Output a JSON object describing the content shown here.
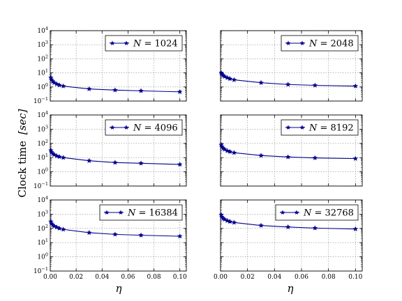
{
  "figure": {
    "ylabel_main": "Clock time",
    "ylabel_unit": "[sec]",
    "xlabel": "η"
  },
  "chart_data": [
    {
      "type": "line",
      "series": [
        {
          "name": "N = 1024",
          "x": [
            0.0005,
            0.001,
            0.002,
            0.003,
            0.005,
            0.007,
            0.01,
            0.03,
            0.05,
            0.07,
            0.1
          ],
          "y": [
            4.5,
            3.3,
            2.5,
            2.0,
            1.6,
            1.35,
            1.15,
            0.72,
            0.6,
            0.53,
            0.45
          ]
        }
      ],
      "x_ticks": [
        "0.00",
        "0.02",
        "0.04",
        "0.06",
        "0.08",
        "0.10"
      ],
      "y_ticks": [
        "10^-1",
        "10^0",
        "10^1",
        "10^2",
        "10^3",
        "10^4"
      ],
      "xlim": [
        0,
        0.105
      ],
      "ylim": [
        0.1,
        10000
      ],
      "yscale": "log",
      "grid": true,
      "legend": "top-right"
    },
    {
      "type": "line",
      "series": [
        {
          "name": "N = 2048",
          "x": [
            0.0005,
            0.001,
            0.002,
            0.003,
            0.005,
            0.007,
            0.01,
            0.03,
            0.05,
            0.07,
            0.1
          ],
          "y": [
            10,
            8,
            6.5,
            5.5,
            4.5,
            3.8,
            3.2,
            2.0,
            1.5,
            1.3,
            1.15
          ]
        }
      ],
      "x_ticks": [
        "0.00",
        "0.02",
        "0.04",
        "0.06",
        "0.08",
        "0.10"
      ],
      "y_ticks": [
        "10^-1",
        "10^0",
        "10^1",
        "10^2",
        "10^3",
        "10^4"
      ],
      "xlim": [
        0,
        0.105
      ],
      "ylim": [
        0.1,
        10000
      ],
      "yscale": "log",
      "grid": true,
      "legend": "top-right"
    },
    {
      "type": "line",
      "series": [
        {
          "name": "N = 4096",
          "x": [
            0.0005,
            0.001,
            0.002,
            0.003,
            0.005,
            0.007,
            0.01,
            0.03,
            0.05,
            0.07,
            0.1
          ],
          "y": [
            32,
            24,
            19,
            16,
            13,
            11.5,
            10,
            6.0,
            4.5,
            4.0,
            3.3
          ]
        }
      ],
      "x_ticks": [
        "0.00",
        "0.02",
        "0.04",
        "0.06",
        "0.08",
        "0.10"
      ],
      "y_ticks": [
        "10^-1",
        "10^0",
        "10^1",
        "10^2",
        "10^3",
        "10^4"
      ],
      "xlim": [
        0,
        0.105
      ],
      "ylim": [
        0.1,
        10000
      ],
      "yscale": "log",
      "grid": true,
      "legend": "top-right"
    },
    {
      "type": "line",
      "series": [
        {
          "name": "N = 8192",
          "x": [
            0.0005,
            0.001,
            0.002,
            0.003,
            0.005,
            0.007,
            0.01,
            0.03,
            0.05,
            0.07,
            0.1
          ],
          "y": [
            80,
            60,
            45,
            38,
            30,
            26,
            22,
            14,
            11,
            9.5,
            8.5
          ]
        }
      ],
      "x_ticks": [
        "0.00",
        "0.02",
        "0.04",
        "0.06",
        "0.08",
        "0.10"
      ],
      "y_ticks": [
        "10^-1",
        "10^0",
        "10^1",
        "10^2",
        "10^3",
        "10^4"
      ],
      "xlim": [
        0,
        0.105
      ],
      "ylim": [
        0.1,
        10000
      ],
      "yscale": "log",
      "grid": true,
      "legend": "top-right"
    },
    {
      "type": "line",
      "series": [
        {
          "name": "N = 16384",
          "x": [
            0.0005,
            0.001,
            0.002,
            0.003,
            0.005,
            0.007,
            0.01,
            0.03,
            0.05,
            0.07,
            0.1
          ],
          "y": [
            300,
            220,
            170,
            145,
            120,
            100,
            85,
            50,
            38,
            33,
            28
          ]
        }
      ],
      "x_ticks": [
        "0.00",
        "0.02",
        "0.04",
        "0.06",
        "0.08",
        "0.10"
      ],
      "y_ticks": [
        "10^-1",
        "10^0",
        "10^1",
        "10^2",
        "10^3",
        "10^4"
      ],
      "xlim": [
        0,
        0.105
      ],
      "ylim": [
        0.1,
        10000
      ],
      "yscale": "log",
      "grid": true,
      "legend": "top-right"
    },
    {
      "type": "line",
      "series": [
        {
          "name": "N = 32768",
          "x": [
            0.0005,
            0.001,
            0.002,
            0.003,
            0.005,
            0.007,
            0.01,
            0.03,
            0.05,
            0.07,
            0.1
          ],
          "y": [
            900,
            650,
            500,
            430,
            350,
            300,
            260,
            160,
            125,
            105,
            90
          ]
        }
      ],
      "x_ticks": [
        "0.00",
        "0.02",
        "0.04",
        "0.06",
        "0.08",
        "0.10"
      ],
      "y_ticks": [
        "10^-1",
        "10^0",
        "10^1",
        "10^2",
        "10^3",
        "10^4"
      ],
      "xlim": [
        0,
        0.105
      ],
      "ylim": [
        0.1,
        10000
      ],
      "yscale": "log",
      "grid": true,
      "legend": "top-right"
    }
  ],
  "style": {
    "line_color": "#00008b",
    "marker": "star",
    "grid_color": "#8c8c8c"
  }
}
